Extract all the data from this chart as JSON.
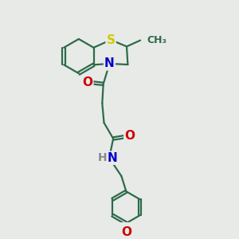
{
  "background_color": "#e8eae8",
  "bond_color": "#2d6b4a",
  "S_color": "#cccc00",
  "N_color": "#0000cc",
  "O_color": "#cc0000",
  "H_color": "#888888",
  "line_width": 1.6,
  "dbo": 0.055,
  "font_size": 10,
  "fig_size": 3.0,
  "dpi": 100,
  "atoms": {
    "S": "#cccc00",
    "N": "#0000cc",
    "O": "#cc0000",
    "H": "#888888",
    "C": "#2d6b4a"
  }
}
